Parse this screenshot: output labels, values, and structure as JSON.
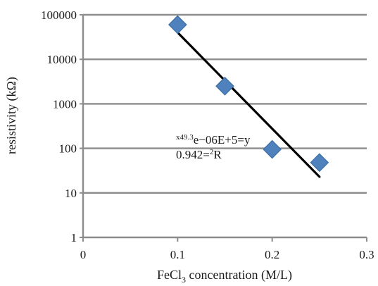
{
  "chart_data": {
    "type": "scatter",
    "xlabel": "FeCl3 concentration (M/L)",
    "xlabel_parts": {
      "pre": "FeCl",
      "sub": "3",
      "post": " concentration (M/L)"
    },
    "ylabel": "resistivity (kΩ)",
    "xlim": [
      0,
      0.3
    ],
    "ylim": [
      1,
      100000
    ],
    "yscale": "log",
    "grid": "horizontal",
    "x_ticks": [
      "0",
      "0.1",
      "0.2",
      "0.3"
    ],
    "x_tick_values": [
      0,
      0.1,
      0.2,
      0.3
    ],
    "y_ticks": [
      "1",
      "10",
      "100",
      "1000",
      "10000",
      "100000"
    ],
    "y_tick_values": [
      1,
      10,
      100,
      1000,
      10000,
      100000
    ],
    "series": [
      {
        "points": [
          [
            0.1,
            60000
          ],
          [
            0.15,
            2500
          ],
          [
            0.2,
            95
          ],
          [
            0.25,
            48
          ]
        ]
      }
    ],
    "trendline": {
      "type": "exponential",
      "x": [
        0.1,
        0.25
      ],
      "y": [
        40000,
        23
      ]
    },
    "annotations": {
      "equation_sup": "x49.3",
      "equation_main": "e−06E+5=y",
      "r2_main": "0.942=",
      "r2_sup": "2",
      "r2_post": "R"
    },
    "colors": {
      "marker": "#4f81bd",
      "marker_edge": "#3a6ea5",
      "trendline": "#000000",
      "grid": "#8c8c8c"
    }
  }
}
